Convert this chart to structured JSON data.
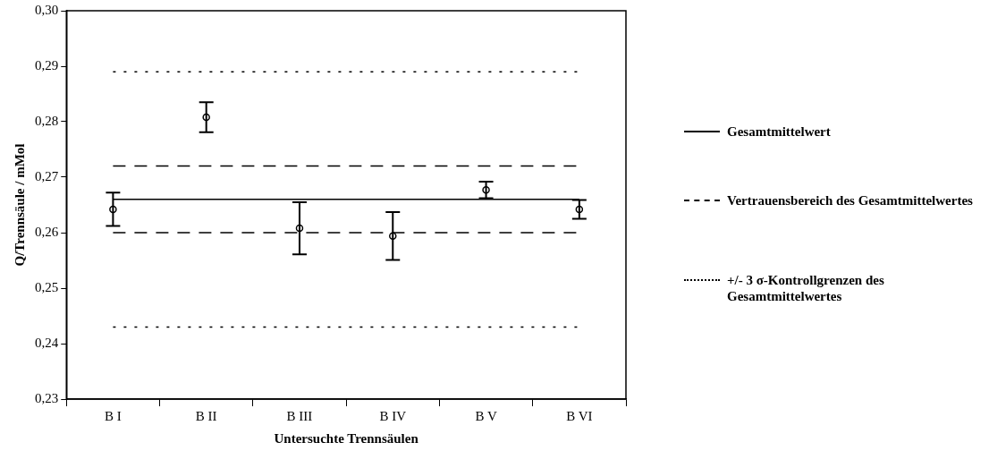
{
  "chart_data": {
    "type": "scatter",
    "xlabel": "Untersuchte Trennsäulen",
    "ylabel": "Q/Trennsäule / mMol",
    "categories": [
      "B I",
      "B II",
      "B III",
      "B IV",
      "B V",
      "B VI"
    ],
    "series": [
      {
        "color": "#000000",
        "values": [
          0.2642,
          0.2808,
          0.2608,
          0.2594,
          0.2677,
          0.2642
        ],
        "errors": [
          0.003,
          0.0027,
          0.0047,
          0.0043,
          0.0015,
          0.0017
        ]
      }
    ],
    "marker": "circle",
    "ylim": [
      0.23,
      0.3
    ],
    "yticks": [
      {
        "value": 0.23,
        "label": "0,23"
      },
      {
        "value": 0.24,
        "label": "0,24"
      },
      {
        "value": 0.25,
        "label": "0,25"
      },
      {
        "value": 0.26,
        "label": "0,26"
      },
      {
        "value": 0.27,
        "label": "0,27"
      },
      {
        "value": 0.28,
        "label": "0,28"
      },
      {
        "value": 0.29,
        "label": "0,29"
      },
      {
        "value": 0.3,
        "label": "0,30"
      }
    ],
    "ref_lines": [
      {
        "axis": "y",
        "value": 0.266,
        "label": "Gesamtmittelwert",
        "line_style": "solid",
        "color": "#000000"
      },
      {
        "axis": "y",
        "value": 0.272,
        "label": "Vertrauensbereich des Gesamtmittelwertes",
        "line_style": "dashed",
        "color": "#000000"
      },
      {
        "axis": "y",
        "value": 0.26,
        "line_style": "dashed",
        "color": "#000000"
      },
      {
        "axis": "y",
        "value": 0.289,
        "label": "+/- 3 σ-Kontrollgrenzen des Gesamtmittelwertes",
        "line_style": "dotted",
        "color": "#000000"
      },
      {
        "axis": "y",
        "value": 0.243,
        "line_style": "dotted",
        "color": "#000000"
      }
    ],
    "grid": false,
    "legend": "right"
  }
}
